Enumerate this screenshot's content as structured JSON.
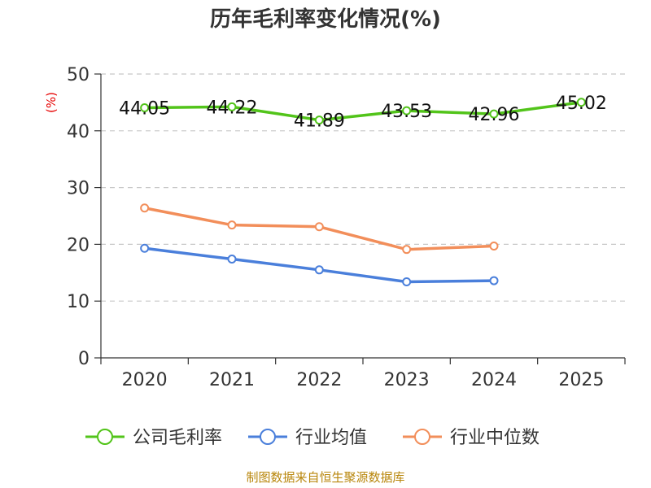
{
  "chart_data": {
    "type": "line",
    "title": "历年毛利率变化情况(%)",
    "ylabel": "(%)",
    "xlabel": "",
    "categories": [
      "2020",
      "2021",
      "2022",
      "2023",
      "2024",
      "2025"
    ],
    "ylim": [
      0,
      50
    ],
    "yticks": [
      0,
      10,
      20,
      30,
      40,
      50
    ],
    "ytick_labels": [
      "0",
      "10",
      "20",
      "30",
      "40",
      "50"
    ],
    "grid": true,
    "legend_position": "bottom",
    "series": [
      {
        "name": "公司毛利率",
        "color": "#52c41a",
        "values": [
          44.05,
          44.22,
          41.89,
          43.53,
          42.96,
          45.02
        ],
        "labels": [
          "44.05",
          "44.22",
          "41.89",
          "43.53",
          "42.96",
          "45.02"
        ]
      },
      {
        "name": "行业均值",
        "color": "#4a7fdb",
        "values": [
          19.3,
          17.4,
          15.5,
          13.4,
          13.6,
          null
        ]
      },
      {
        "name": "行业中位数",
        "color": "#f28e5a",
        "values": [
          26.4,
          23.4,
          23.1,
          19.1,
          19.7,
          null
        ]
      }
    ],
    "source": "制图数据来自恒生聚源数据库"
  }
}
